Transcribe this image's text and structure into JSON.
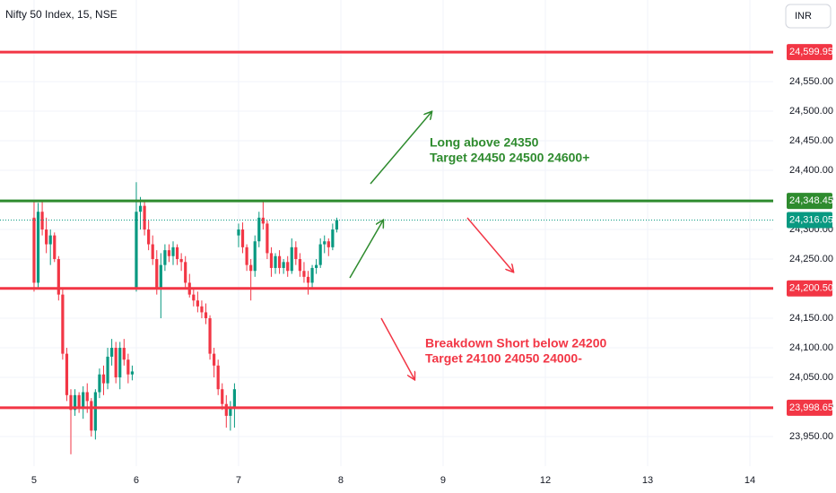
{
  "chart_data": {
    "type": "candlestick",
    "title": "Nifty 50 Index, 15, NSE",
    "currency": "INR",
    "up_color": "#089981",
    "down_color": "#f23645",
    "x": [
      0,
      0.04,
      0.08,
      0.12,
      0.16,
      0.2,
      0.24,
      0.28,
      0.32,
      0.36,
      0.4,
      0.44,
      0.48,
      0.52,
      0.56,
      0.6,
      0.64,
      0.68,
      0.72,
      0.76,
      0.8,
      0.84,
      0.88,
      0.92,
      0.96,
      1,
      1.04,
      1.08,
      1.12,
      1.16,
      1.2,
      1.24,
      1.28,
      1.32,
      1.36,
      1.4,
      1.44,
      1.48,
      1.52,
      1.56,
      1.6,
      1.64,
      1.68,
      1.72,
      1.76,
      1.8,
      1.84,
      1.88,
      1.92,
      1.96,
      2,
      2.04,
      2.08,
      2.12,
      2.16,
      2.2,
      2.24,
      2.28,
      2.32,
      2.36,
      2.4,
      2.44,
      2.48,
      2.52,
      2.56,
      2.6,
      2.64,
      2.68,
      2.72,
      2.76,
      2.8,
      2.84,
      2.88,
      2.92,
      2.96
    ],
    "open": [
      24320,
      24210,
      24330,
      24300,
      24275,
      24290,
      24250,
      24190,
      24090,
      24020,
      23995,
      24020,
      24000,
      24025,
      24010,
      23960,
      24025,
      24055,
      24040,
      24085,
      24100,
      24050,
      24100,
      24080,
      24055,
      24200,
      24330,
      24340,
      24300,
      24275,
      24250,
      24200,
      24240,
      24265,
      24255,
      24270,
      24250,
      24245,
      24210,
      24190,
      24180,
      24170,
      24160,
      24150,
      24090,
      24070,
      24030,
      24005,
      23985,
      24000,
      24290,
      24300,
      24270,
      24240,
      24230,
      24280,
      24320,
      24310,
      24260,
      24235,
      24255,
      24235,
      24245,
      24230,
      24270,
      24250,
      24230,
      24220,
      24210,
      24235,
      24240,
      24275,
      24280,
      24270,
      24300
    ],
    "high": [
      24348,
      24345,
      24348,
      24320,
      24300,
      24295,
      24255,
      24200,
      24100,
      24030,
      24030,
      24025,
      24035,
      24040,
      24015,
      24030,
      24065,
      24070,
      24100,
      24115,
      24110,
      24110,
      24115,
      24090,
      24070,
      24380,
      24355,
      24348,
      24315,
      24290,
      24265,
      24260,
      24275,
      24275,
      24280,
      24275,
      24260,
      24255,
      24225,
      24200,
      24195,
      24180,
      24175,
      24155,
      24100,
      24080,
      24040,
      24020,
      24010,
      24040,
      24310,
      24312,
      24275,
      24250,
      24290,
      24330,
      24350,
      24315,
      24270,
      24260,
      24265,
      24250,
      24255,
      24285,
      24280,
      24260,
      24245,
      24230,
      24240,
      24250,
      24285,
      24290,
      24285,
      24310,
      24320
    ],
    "low": [
      24195,
      24200,
      24290,
      24260,
      24240,
      24245,
      24180,
      24080,
      24010,
      23920,
      23985,
      23990,
      23980,
      23990,
      23950,
      23945,
      24015,
      24020,
      24030,
      24070,
      24040,
      24030,
      24070,
      24040,
      24045,
      24195,
      24300,
      24290,
      24265,
      24240,
      24190,
      24150,
      24230,
      24245,
      24240,
      24240,
      24230,
      24200,
      24185,
      24170,
      24160,
      24150,
      24140,
      24080,
      24050,
      24020,
      23995,
      23965,
      23960,
      23965,
      24270,
      24260,
      24230,
      24180,
      24220,
      24270,
      24300,
      24250,
      24220,
      24225,
      24225,
      24225,
      24220,
      24225,
      24240,
      24220,
      24210,
      24190,
      24200,
      24225,
      24235,
      24260,
      24255,
      24265,
      24295
    ],
    "close": [
      24210,
      24330,
      24300,
      24275,
      24290,
      24250,
      24190,
      24090,
      24020,
      23995,
      24020,
      24000,
      24025,
      24010,
      23960,
      24025,
      24055,
      24040,
      24085,
      24100,
      24050,
      24100,
      24080,
      24055,
      24060,
      24330,
      24340,
      24300,
      24275,
      24250,
      24200,
      24240,
      24265,
      24255,
      24270,
      24250,
      24245,
      24210,
      24190,
      24180,
      24170,
      24160,
      24150,
      24090,
      24070,
      24030,
      24005,
      23985,
      24000,
      24030,
      24300,
      24270,
      24240,
      24230,
      24280,
      24320,
      24310,
      24260,
      24235,
      24255,
      24235,
      24245,
      24230,
      24270,
      24250,
      24230,
      24220,
      24210,
      24235,
      24240,
      24275,
      24280,
      24270,
      24300,
      24316.05
    ],
    "xlim": [
      -0.333,
      7.228
    ],
    "xticks": [
      {
        "value": 0,
        "label": "5"
      },
      {
        "value": 1,
        "label": "6"
      },
      {
        "value": 2,
        "label": "7"
      },
      {
        "value": 3,
        "label": "8"
      },
      {
        "value": 4,
        "label": "9"
      },
      {
        "value": 5,
        "label": "12"
      },
      {
        "value": 6,
        "label": "13"
      },
      {
        "value": 7,
        "label": "14"
      }
    ],
    "ylim": [
      23900,
      24688
    ],
    "yticks": [
      {
        "value": 23950,
        "label": "23,950.00"
      },
      {
        "value": 24000,
        "label": "24,000.00"
      },
      {
        "value": 24050,
        "label": "24,050.00"
      },
      {
        "value": 24100,
        "label": "24,100.00"
      },
      {
        "value": 24150,
        "label": "24,150.00"
      },
      {
        "value": 24200,
        "label": "24,200.00"
      },
      {
        "value": 24250,
        "label": "24,250.00"
      },
      {
        "value": 24300,
        "label": "24,300.00"
      },
      {
        "value": 24350,
        "label": "24,350.00"
      },
      {
        "value": 24400,
        "label": "24,400.00"
      },
      {
        "value": 24450,
        "label": "24,450.00"
      },
      {
        "value": 24500,
        "label": "24,500.00"
      },
      {
        "value": 24550,
        "label": "24,550.00"
      }
    ],
    "grid": true,
    "levels": [
      {
        "value": 24599.95,
        "label": "24,599.95",
        "color": "#f23645"
      },
      {
        "value": 24348.45,
        "label": "24,348.45",
        "color": "#2e8b2e"
      },
      {
        "value": 24200.5,
        "label": "24,200.50",
        "color": "#f23645"
      },
      {
        "value": 23998.65,
        "label": "23,998.65",
        "color": "#f23645"
      }
    ],
    "last_price": {
      "value": 24316.05,
      "label": "24,316.05",
      "color": "#089981"
    },
    "annotations": [
      {
        "lines": [
          "Long above 24350",
          "Target 24450 24500 24600+"
        ],
        "color": "#2e8b2e"
      },
      {
        "lines": [
          "Breakdown Short below 24200",
          "Target 24100 24050 24000-"
        ],
        "color": "#f23645"
      }
    ]
  }
}
